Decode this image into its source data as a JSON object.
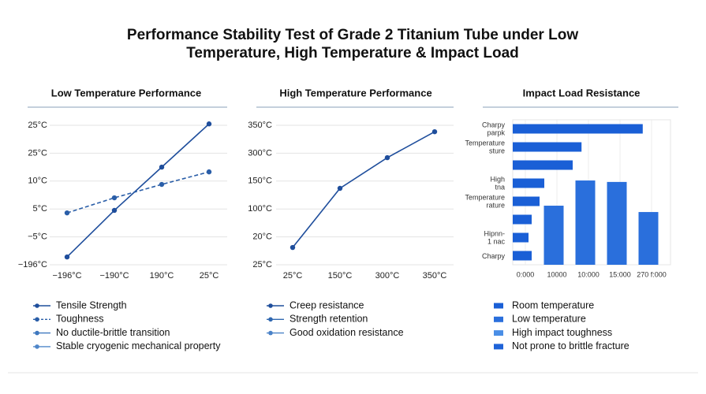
{
  "title": [
    "Performance Stability Test of Grade 2 Titanium Tube under Low",
    "Temperature, High Temperature & Impact Load"
  ],
  "chart_data": [
    {
      "type": "line",
      "title": "Low Temperature Performance",
      "categories": [
        "−196°C",
        "−190°C",
        "190°C",
        "25°C"
      ],
      "ylim": [
        0,
        5
      ],
      "yticks": [
        {
          "value": 0,
          "label": "−196°C"
        },
        {
          "value": 1,
          "label": "−5°C"
        },
        {
          "value": 2,
          "label": "5°C"
        },
        {
          "value": 3,
          "label": "10°C"
        },
        {
          "value": 4,
          "label": "25°C"
        },
        {
          "value": 5,
          "label": "25°C"
        }
      ],
      "grid": true,
      "series": [
        {
          "name": "Tensile Strength",
          "color": "#1f4e9c",
          "dashed": false,
          "values": [
            0.28,
            1.95,
            3.5,
            5.05
          ]
        },
        {
          "name": "Toughness",
          "color": "#2a5ea8",
          "dashed": true,
          "values": [
            1.86,
            2.4,
            2.88,
            3.33
          ]
        },
        {
          "name": "No ductile-brittle transition",
          "color": "#3f78bf",
          "dashed": false,
          "values": [
            null,
            null,
            null,
            null
          ]
        },
        {
          "name": "Stable cryogenic mechanical property",
          "color": "#4f86c9",
          "dashed": false,
          "values": [
            null,
            null,
            null,
            null
          ]
        }
      ]
    },
    {
      "type": "line",
      "title": "High Temperature Performance",
      "categories": [
        "25°C",
        "150°C",
        "300°C",
        "350°C"
      ],
      "ylim": [
        0,
        5
      ],
      "yticks": [
        {
          "value": 0,
          "label": "25°C"
        },
        {
          "value": 1,
          "label": "20°C"
        },
        {
          "value": 2,
          "label": "100°C"
        },
        {
          "value": 3,
          "label": "150°C"
        },
        {
          "value": 4,
          "label": "300°C"
        },
        {
          "value": 5,
          "label": "350°C"
        }
      ],
      "grid": true,
      "series": [
        {
          "name": "Creep resistance",
          "color": "#1f4e9c",
          "dashed": false,
          "values": [
            0.62,
            2.74,
            3.84,
            4.77
          ]
        },
        {
          "name": "Strength retention",
          "color": "#2f67b0",
          "dashed": false,
          "values": [
            null,
            null,
            null,
            null
          ]
        },
        {
          "name": "Good oxidation resistance",
          "color": "#4a82c8",
          "dashed": false,
          "values": [
            null,
            null,
            null,
            null
          ]
        }
      ]
    },
    {
      "type": "bar",
      "orientation": "horizontal",
      "title": "Impact Load Resistance",
      "categories": [
        "Charpy\nparpk",
        "Temperature\nsture",
        null,
        "High\ntna",
        "Temperature\nrature",
        null,
        "Hipnn-\n1 nac",
        "Charpy"
      ],
      "xlim": [
        0,
        5
      ],
      "xticks": [
        {
          "value": 0.4,
          "label": "0:000"
        },
        {
          "value": 1.4,
          "label": "10000"
        },
        {
          "value": 2.4,
          "label": "10:000"
        },
        {
          "value": 3.4,
          "label": "15:000"
        },
        {
          "value": 4.4,
          "label": "270 f:000"
        }
      ],
      "y2lim": [
        0,
        8
      ],
      "grid": true,
      "series": [
        {
          "name": "Room temperature",
          "color": "#1a5fd6",
          "values": [
            4.12,
            2.18,
            1.9,
            1.0,
            0.85,
            0.6,
            0.5,
            0.6
          ]
        },
        {
          "name": "Low temperature",
          "color": "#2a6fdc",
          "axis": "y2",
          "x": [
            1.3,
            2.3,
            3.3,
            4.3
          ],
          "values": [
            3.26,
            4.65,
            4.57,
            2.91
          ]
        },
        {
          "name": "High impact toughness",
          "color": "#4a8ee6",
          "values": [
            null,
            null,
            null,
            null,
            null,
            null,
            null,
            null
          ]
        },
        {
          "name": "Not prone to brittle fracture",
          "color": "#1f63d8",
          "values": [
            null,
            null,
            null,
            null,
            null,
            null,
            null,
            null
          ]
        }
      ]
    }
  ]
}
